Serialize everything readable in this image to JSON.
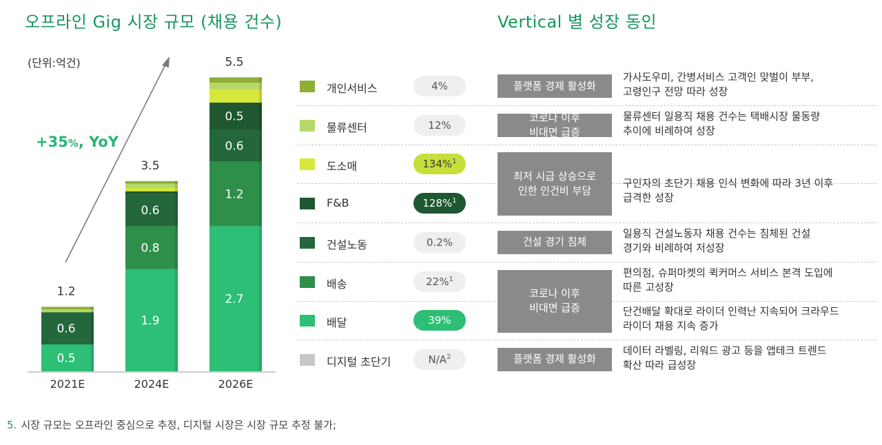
{
  "titles": {
    "left": "오프라인 Gig 시장 규모 (채용 건수)",
    "right": "Vertical 별 성장 동인"
  },
  "unit_label": "(단위:억건)",
  "growth": {
    "prefix": "+35",
    "pct": "%",
    "suffix": ", YoY"
  },
  "chart_data": {
    "type": "bar",
    "stacked": true,
    "categories": [
      "2021E",
      "2024E",
      "2026E"
    ],
    "totals": [
      "1.2",
      "3.5",
      "5.5"
    ],
    "series": [
      {
        "name": "배달",
        "color": "#2cbf75",
        "values": [
          0.5,
          1.9,
          2.7
        ],
        "labels": [
          "0.5",
          "1.9",
          "2.7"
        ]
      },
      {
        "name": "배송",
        "color": "#2e8f4b",
        "values": [
          0.0,
          0.8,
          1.2
        ],
        "labels": [
          "",
          "0.8",
          "1.2"
        ]
      },
      {
        "name": "건설노동",
        "color": "#24673a",
        "values": [
          0.6,
          0.6,
          0.6
        ],
        "labels": [
          "0.6",
          "0.6",
          "0.6"
        ]
      },
      {
        "name": "F&B",
        "color": "#1e5730",
        "values": [
          0.0,
          0.05,
          0.5
        ],
        "labels": [
          "",
          "",
          "0.5"
        ]
      },
      {
        "name": "도소매",
        "color": "#d6e83c",
        "values": [
          0.0,
          0.06,
          0.25
        ],
        "labels": [
          "",
          "",
          ""
        ]
      },
      {
        "name": "물류센터",
        "color": "#b5d86a",
        "values": [
          0.05,
          0.08,
          0.12
        ],
        "labels": [
          "",
          "",
          ""
        ]
      },
      {
        "name": "개인서비스",
        "color": "#8fae35",
        "values": [
          0.05,
          0.05,
          0.1
        ],
        "labels": [
          "",
          "",
          ""
        ]
      }
    ],
    "ylim": [
      0,
      6
    ]
  },
  "rows": [
    {
      "label": "개인서비스",
      "color": "#8fae35",
      "pill": "4%",
      "sup": "",
      "pill_style": ""
    },
    {
      "label": "물류센터",
      "color": "#b5d86a",
      "pill": "12%",
      "sup": "",
      "pill_style": ""
    },
    {
      "label": "도소매",
      "color": "#d6e83c",
      "pill": "134%",
      "sup": "1",
      "pill_style": "yellow"
    },
    {
      "label": "F&B",
      "color": "#1e5730",
      "pill": "128%",
      "sup": "1",
      "pill_style": "dark"
    },
    {
      "label": "건설노동",
      "color": "#24673a",
      "pill": "0.2%",
      "sup": "",
      "pill_style": ""
    },
    {
      "label": "배송",
      "color": "#2e8f4b",
      "pill": "22%",
      "sup": "1",
      "pill_style": ""
    },
    {
      "label": "배달",
      "color": "#2cbf75",
      "pill": "39%",
      "sup": "",
      "pill_style": "green"
    },
    {
      "label": "디지털 초단기",
      "color": "#c8c8c8",
      "pill": "N/A",
      "sup": "2",
      "pill_style": ""
    }
  ],
  "drivers": [
    {
      "text": "플랫폼 경제 활성화"
    },
    {
      "text": "코로나 이후\n비대면 급증"
    },
    {
      "text": "최저 시급 상승으로\n인한 인건비 부담"
    },
    {
      "text": "건설 경기 침체"
    },
    {
      "text": "코로나 이후\n비대면 급증"
    },
    {
      "text": "플랫폼 경제 활성화"
    }
  ],
  "descriptions": [
    "가사도우미, 간병서비스 고객인 맞벌이 부부,\n고령인구 전망 따라 성장",
    "물류센터 일용직 채용 건수는 택배시장 물동량\n추이에 비례하여 성장",
    "구인자의 초단기 채용 인식 변화에 따라 3년 이후\n급격한 성장",
    "일용직 건설노동자 채용 건수는 침체된 건설\n경기와 비례하여 저성장",
    "편의점, 슈퍼마켓의 퀵커머스 서비스 본격 도입에\n따른 고성장",
    "단건배달 확대로 라이더 인력난 지속되어 크라우드\n라이더 채용 지속 증가",
    "데이터 라벨링, 리워드 광고 등을 앱테크 트렌드\n확산 따라 급성장"
  ],
  "footnote": {
    "num": "5.",
    "text": "시장 규모는 오프라인 중심으로 추정, 디지털 시장은 시장 규모 추정 불가;"
  }
}
